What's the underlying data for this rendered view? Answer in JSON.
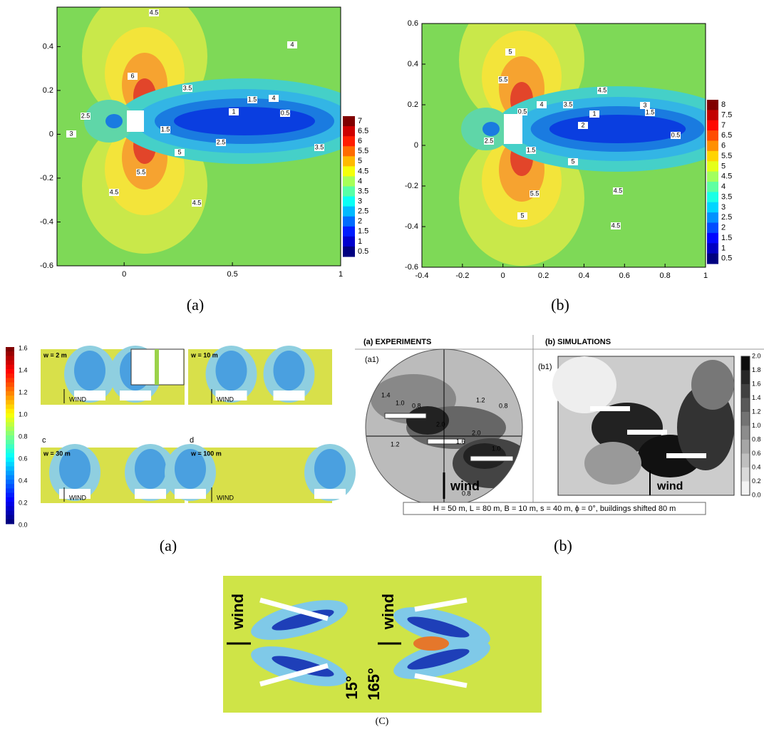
{
  "figure_top": {
    "left": {
      "xlim": [
        -0.31,
        1
      ],
      "ylim": [
        -0.6,
        0.58
      ],
      "xticks": [
        0,
        0.5,
        1
      ],
      "yticks": [
        0.4,
        0.2,
        0,
        -0.2,
        -0.4,
        -0.6
      ],
      "colorbar": [
        7,
        6.5,
        6,
        5.5,
        5,
        4.5,
        4,
        3.5,
        3,
        2.5,
        2,
        1.5,
        1,
        0.5
      ],
      "contour_labels": [
        4.5,
        4,
        4,
        3.5,
        1.5,
        1,
        0.5,
        2.5,
        3,
        1.5,
        2.5,
        3.5,
        5.5,
        4.5,
        4.5,
        6,
        5
      ],
      "caption": "(a)"
    },
    "right": {
      "xlim": [
        -0.4,
        1
      ],
      "ylim": [
        -0.6,
        0.6
      ],
      "xticks": [
        -0.4,
        -0.2,
        0,
        0.2,
        0.4,
        0.6,
        0.8,
        1
      ],
      "yticks": [
        0.6,
        0.4,
        0.2,
        0,
        -0.2,
        -0.4,
        -0.6
      ],
      "colorbar": [
        8,
        7.5,
        7,
        6.5,
        6,
        5.5,
        5,
        4.5,
        4,
        3.5,
        3,
        2.5,
        2,
        1.5,
        1,
        0.5
      ],
      "contour_labels": [
        5,
        5.5,
        4.5,
        4,
        3.5,
        3,
        1.5,
        1,
        2,
        0.5,
        2.5,
        1.5,
        5,
        5.5,
        4.5,
        5,
        4.5,
        0.5
      ],
      "caption": "(b)"
    }
  },
  "figure_middle": {
    "left": {
      "colorbar": [
        "1.6",
        "1.4",
        "1.2",
        "1.0",
        "0.8",
        "0.6",
        "0.4",
        "0.2",
        "0.0"
      ],
      "panels": [
        {
          "label": "w = 2 m",
          "wind": "WIND"
        },
        {
          "label": "w = 10 m",
          "wind": "WIND"
        },
        {
          "letter": "c",
          "label": "w = 30 m",
          "wind": "WIND"
        },
        {
          "letter": "d",
          "label": "w = 100 m",
          "wind": "WIND"
        }
      ],
      "caption": "(a)"
    },
    "right": {
      "experiments_title": "(a) EXPERIMENTS",
      "simulations_title": "(b) SIMULATIONS",
      "experiments_panel": "(a1)",
      "simulations_panel": "(b1)",
      "experiments_contours": [
        "1.4",
        "1.0",
        "0.8",
        "1.2",
        "2.0",
        "2.0",
        "1.6",
        "1.0",
        "0.8",
        "1.2",
        "0.8"
      ],
      "wind_experiments": "wind",
      "wind_simulations": "wind",
      "colorbar": [
        "2.0",
        "1.8",
        "1.6",
        "1.4",
        "1.2",
        "1.0",
        "0.8",
        "0.6",
        "0.4",
        "0.2",
        "0.0"
      ],
      "parameters": "H = 50 m, L = 80 m, B = 10 m, s = 40 m, ϕ = 0°, buildings shifted 80 m",
      "caption": "(b)"
    }
  },
  "figure_bottom": {
    "wind_left": "wind",
    "wind_right": "wind",
    "angle_left": "15°",
    "angle_right": "165°",
    "caption": "(C)"
  }
}
